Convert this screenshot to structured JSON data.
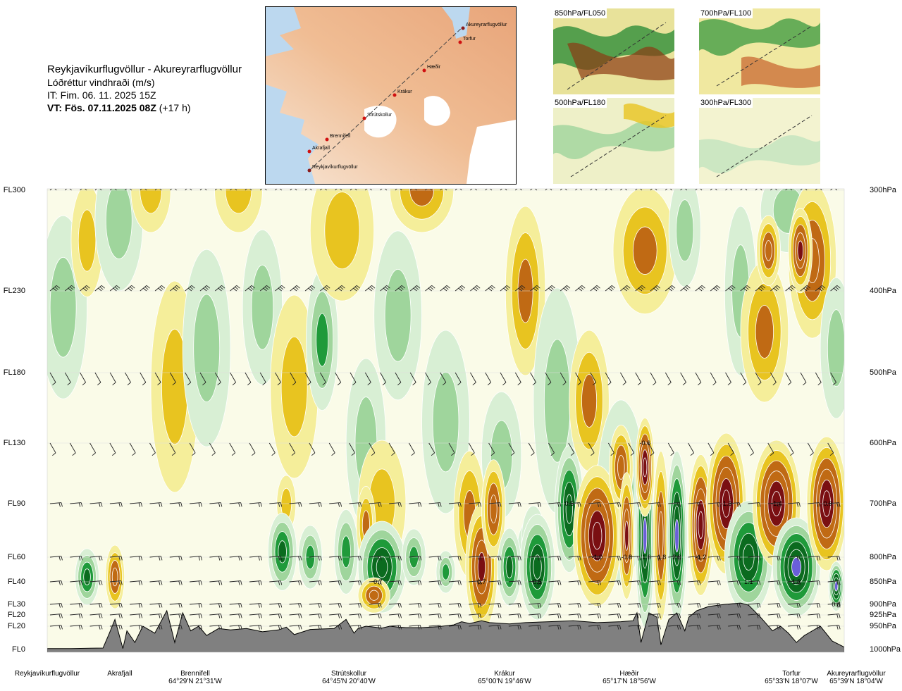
{
  "header": {
    "route": "Reykjavíkurflugvöllur - Akureyrarflugvöllur",
    "quantity": "Lóðréttur vindhraði (m/s)",
    "issue_time": "IT: Fim. 06. 11. 2025 15Z",
    "valid_time": "VT: Fös. 07.11.2025 08Z",
    "lead_time": "(+17 h)"
  },
  "route_map": {
    "waypoints": [
      "Akureyrarflugvöllur",
      "Torfur",
      "Hæðir",
      "Krákur",
      "Strútskollur",
      "Brennifell",
      "Akrafjall",
      "Reykjavíkurflugvöllur"
    ]
  },
  "level_maps": [
    {
      "label": "850hPa/FL050"
    },
    {
      "label": "700hPa/FL100"
    },
    {
      "label": "500hPa/FL180"
    },
    {
      "label": "300hPa/FL300"
    }
  ],
  "colors": {
    "strong_down": "#7a0f12",
    "down_mid": "#c06a14",
    "down_weak": "#e8c420",
    "down_faint": "#f5ee9a",
    "neutral": "#fafbe8",
    "up_faint": "#d8efd4",
    "up_weak": "#9fd59c",
    "up_mid": "#1f9a3a",
    "up_strong": "#0b6b1f",
    "up_extreme": "#6a5fd8",
    "terrain": "#808080"
  },
  "chart_data": {
    "type": "heatmap",
    "description_levels": {
      "left": [
        "FL300",
        "FL230",
        "FL180",
        "FL130",
        "FL90",
        "FL60",
        "FL40",
        "FL30",
        "FL20",
        "FL20",
        "FL0"
      ],
      "right": [
        "300hPa",
        "400hPa",
        "500hPa",
        "600hPa",
        "700hPa",
        "800hPa",
        "850hPa",
        "900hPa",
        "925hPa",
        "950hPa",
        "1000hPa"
      ],
      "pressure_values": [
        300,
        400,
        500,
        600,
        700,
        800,
        850,
        900,
        925,
        950,
        1000
      ]
    },
    "x_stations": [
      {
        "name": "Reykjavíkurflugvöllur",
        "coord": ""
      },
      {
        "name": "Akrafjall",
        "coord": ""
      },
      {
        "name": "Brennifell",
        "coord": "64°29'N 21°31'W"
      },
      {
        "name": "Strútskollur",
        "coord": "64°45'N 20°40'W"
      },
      {
        "name": "Krákur",
        "coord": "65°00'N 19°46'W"
      },
      {
        "name": "Hæðir",
        "coord": "65°17'N 18°56'W"
      },
      {
        "name": "Torfur",
        "coord": "65°33'N 18°07'W"
      },
      {
        "name": "Akureyrarflugvöllur",
        "coord": "65°39'N 18°04'W"
      }
    ],
    "x_station_fraction": [
      0.0,
      0.078,
      0.18,
      0.385,
      0.555,
      0.75,
      0.94,
      1.0
    ],
    "annotations": [
      {
        "text": "0.7",
        "x": 0.415,
        "p": 850
      },
      {
        "text": "0.7",
        "x": 0.545,
        "p": 850
      },
      {
        "text": "0.5",
        "x": 0.615,
        "p": 850
      },
      {
        "text": "0.5",
        "x": 0.655,
        "p": 700
      },
      {
        "text": "-0.6",
        "x": 0.75,
        "p": 600
      },
      {
        "text": "-1.0",
        "x": 0.69,
        "p": 800
      },
      {
        "text": "-0.8",
        "x": 0.727,
        "p": 800
      },
      {
        "text": "1.6",
        "x": 0.752,
        "p": 800
      },
      {
        "text": "1.8",
        "x": 0.771,
        "p": 800
      },
      {
        "text": "2.0",
        "x": 0.79,
        "p": 800
      },
      {
        "text": "-1.2",
        "x": 0.82,
        "p": 800
      },
      {
        "text": "-1.3",
        "x": 0.852,
        "p": 700
      },
      {
        "text": "-1.4",
        "x": 0.915,
        "p": 700
      },
      {
        "text": "-0.9",
        "x": 0.978,
        "p": 700
      },
      {
        "text": "1.1",
        "x": 0.88,
        "p": 850
      },
      {
        "text": "1.3",
        "x": 0.94,
        "p": 850
      },
      {
        "text": "0.8",
        "x": 0.99,
        "p": 900
      }
    ],
    "terrain": {
      "x": [
        0.0,
        0.03,
        0.07,
        0.078,
        0.085,
        0.095,
        0.1,
        0.11,
        0.12,
        0.135,
        0.15,
        0.16,
        0.17,
        0.18,
        0.19,
        0.2,
        0.215,
        0.23,
        0.25,
        0.27,
        0.29,
        0.3,
        0.31,
        0.33,
        0.36,
        0.375,
        0.385,
        0.39,
        0.4,
        0.42,
        0.43,
        0.44,
        0.45,
        0.47,
        0.49,
        0.51,
        0.52,
        0.53,
        0.545,
        0.555,
        0.58,
        0.6,
        0.63,
        0.66,
        0.69,
        0.72,
        0.735,
        0.74,
        0.745,
        0.755,
        0.765,
        0.77,
        0.78,
        0.79,
        0.8,
        0.805,
        0.815,
        0.83,
        0.85,
        0.87,
        0.88,
        0.895,
        0.91,
        0.92,
        0.93,
        0.94,
        0.95,
        0.97,
        0.985,
        1.0
      ],
      "p": [
        998,
        998,
        997,
        965,
        935,
        998,
        960,
        985,
        950,
        965,
        915,
        985,
        920,
        960,
        950,
        970,
        955,
        958,
        955,
        962,
        958,
        952,
        968,
        957,
        955,
        935,
        965,
        955,
        950,
        954,
        950,
        952,
        953,
        953,
        951,
        947,
        940,
        944,
        938,
        942,
        945,
        942,
        940,
        938,
        942,
        940,
        938,
        920,
        985,
        920,
        930,
        990,
        935,
        920,
        960,
        930,
        915,
        905,
        900,
        897,
        902,
        930,
        960,
        950,
        965,
        985,
        970,
        950,
        982,
        995
      ]
    }
  }
}
